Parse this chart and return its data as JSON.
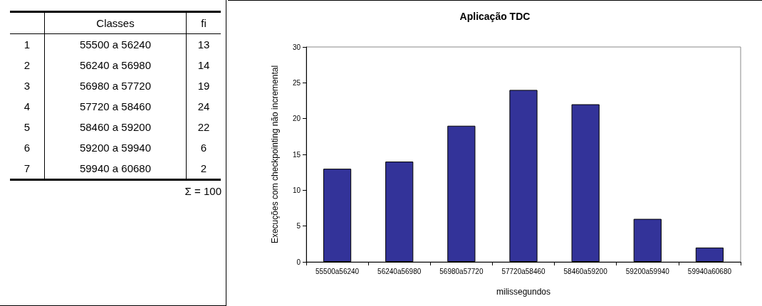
{
  "chart_data": {
    "type": "bar",
    "title": "Aplicação TDC",
    "xlabel": "milissegundos",
    "ylabel": "Execuções com checkpointing não incremental",
    "categories": [
      "55500a56240",
      "56240a56980",
      "56980a57720",
      "57720a58460",
      "58460a59200",
      "59200a59940",
      "59940a60680"
    ],
    "values": [
      13,
      14,
      19,
      24,
      22,
      6,
      2
    ],
    "color": "#333399",
    "ylim": [
      0,
      30
    ],
    "yticks": [
      0,
      5,
      10,
      15,
      20,
      25,
      30
    ],
    "grid": false,
    "annotations": [
      "Classes",
      "fi",
      "1",
      "55500  a 56240",
      "13",
      "2",
      "56240  a 56980",
      "14",
      "3",
      "56980  a 57720",
      "19",
      "4",
      "57720  a 58460",
      "24",
      "5",
      "58460  a 59200",
      "22",
      "6",
      "59200  a 59940",
      "6",
      "7",
      "59940  a 60680",
      "2",
      "Σ = 100"
    ]
  }
}
